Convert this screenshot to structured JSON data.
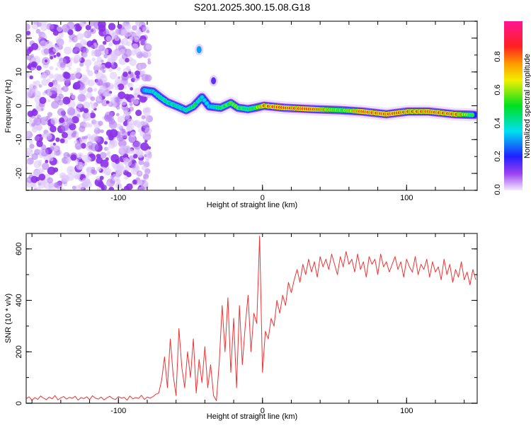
{
  "chart_data": [
    {
      "type": "heatmap",
      "title": "S201.2025.300.15.08.G18",
      "xlabel": "Height of straight line (km)",
      "ylabel": "Frequency (Hz)",
      "xlim": [
        -164,
        149
      ],
      "ylim": [
        -25,
        25
      ],
      "xticks": [
        -100,
        0,
        100
      ],
      "xtick_labels": [
        "-100",
        "0",
        "100"
      ],
      "yticks": [
        -20,
        -10,
        0,
        10,
        20
      ],
      "ytick_labels": [
        "-20",
        "-10",
        "0",
        "10",
        "20"
      ],
      "colorbar": {
        "label": "Normalized spectral amplitude",
        "range": [
          0,
          1
        ],
        "ticks": [
          0.0,
          0.2,
          0.4,
          0.6,
          0.8
        ],
        "tick_labels": [
          "0.0",
          "0.2",
          "0.4",
          "0.6",
          "0.8"
        ],
        "colormap": [
          {
            "v": 0.0,
            "c": "#f4eaff"
          },
          {
            "v": 0.1,
            "c": "#9a40f0"
          },
          {
            "v": 0.2,
            "c": "#2020ff"
          },
          {
            "v": 0.35,
            "c": "#00e0f0"
          },
          {
            "v": 0.5,
            "c": "#00e020"
          },
          {
            "v": 0.65,
            "c": "#f0f000"
          },
          {
            "v": 0.75,
            "c": "#ff9900"
          },
          {
            "v": 0.85,
            "c": "#ff2020"
          },
          {
            "v": 1.0,
            "c": "#ff1493"
          }
        ]
      },
      "noise_region": {
        "height": [
          -164,
          -78
        ],
        "frequency": [
          -25,
          25
        ],
        "amplitude": [
          0.0,
          0.15
        ]
      },
      "ridge": [
        {
          "h": -82,
          "f": 4.6,
          "a": 0.35
        },
        {
          "h": -76,
          "f": 4.2,
          "a": 0.4
        },
        {
          "h": -71,
          "f": 2.5,
          "a": 0.45
        },
        {
          "h": -66,
          "f": 1.0,
          "a": 0.5
        },
        {
          "h": -59,
          "f": -0.2,
          "a": 0.45
        },
        {
          "h": -53,
          "f": -1.3,
          "a": 0.45
        },
        {
          "h": -48,
          "f": -0.2,
          "a": 0.55
        },
        {
          "h": -42,
          "f": 2.5,
          "a": 0.4
        },
        {
          "h": -37,
          "f": -0.2,
          "a": 0.35
        },
        {
          "h": -29,
          "f": -0.6,
          "a": 0.55
        },
        {
          "h": -22,
          "f": 0.8,
          "a": 0.6
        },
        {
          "h": -17,
          "f": -0.6,
          "a": 0.6
        },
        {
          "h": -10,
          "f": -1.0,
          "a": 0.5
        },
        {
          "h": -5,
          "f": -0.6,
          "a": 0.6
        },
        {
          "h": 1,
          "f": 0.0,
          "a": 0.85
        },
        {
          "h": 15,
          "f": -0.6,
          "a": 0.9
        },
        {
          "h": 34,
          "f": -1.0,
          "a": 0.92
        },
        {
          "h": 54,
          "f": -1.3,
          "a": 0.6
        },
        {
          "h": 69,
          "f": -1.7,
          "a": 0.88
        },
        {
          "h": 86,
          "f": -2.5,
          "a": 0.9
        },
        {
          "h": 101,
          "f": -1.7,
          "a": 0.85
        },
        {
          "h": 115,
          "f": -1.7,
          "a": 0.85
        },
        {
          "h": 133,
          "f": -2.5,
          "a": 0.9
        },
        {
          "h": 147,
          "f": -2.7,
          "a": 0.5
        }
      ],
      "isolated_features": [
        {
          "h": -44,
          "f": 16.6,
          "a": 0.3
        },
        {
          "h": -34,
          "f": 7.4,
          "a": 0.15
        }
      ]
    },
    {
      "type": "line",
      "xlabel": "Height of straight line (km)",
      "ylabel": "SNR (10 * v/v)",
      "xlim": [
        -164,
        149
      ],
      "ylim": [
        0,
        660
      ],
      "xticks": [
        -100,
        0,
        100
      ],
      "xtick_labels": [
        "-100",
        "0",
        "100"
      ],
      "yticks": [
        0,
        200,
        400,
        600
      ],
      "ytick_labels": [
        "0",
        "200",
        "400",
        "600"
      ],
      "color": "#ee3333",
      "x_start": -164,
      "x_step": 2,
      "values": [
        18,
        25,
        12,
        22,
        15,
        28,
        20,
        14,
        24,
        17,
        30,
        13,
        21,
        26,
        16,
        23,
        19,
        27,
        12,
        22,
        18,
        25,
        14,
        29,
        20,
        16,
        24,
        13,
        21,
        27,
        18,
        15,
        26,
        20,
        23,
        12,
        28,
        17,
        22,
        19,
        31,
        15,
        24,
        20,
        26,
        35,
        40,
        90,
        180,
        60,
        250,
        110,
        30,
        290,
        140,
        60,
        200,
        100,
        250,
        40,
        170,
        80,
        220,
        60,
        150,
        30,
        10,
        160,
        380,
        200,
        410,
        120,
        330,
        60,
        380,
        150,
        300,
        420,
        200,
        350,
        310,
        650,
        120,
        280,
        250,
        330,
        300,
        400,
        350,
        420,
        380,
        470,
        430,
        480,
        520,
        470,
        540,
        500,
        560,
        510,
        550,
        490,
        570,
        530,
        560,
        520,
        580,
        540,
        500,
        570,
        530,
        590,
        540,
        560,
        510,
        580,
        520,
        550,
        490,
        570,
        540,
        560,
        500,
        580,
        530,
        550,
        510,
        540,
        570,
        520,
        550,
        490,
        560,
        530,
        510,
        570,
        500,
        540,
        520,
        560,
        490,
        550,
        510,
        530,
        480,
        560,
        500,
        540,
        470,
        520,
        490,
        550,
        480,
        510,
        460,
        520,
        480
      ]
    }
  ]
}
